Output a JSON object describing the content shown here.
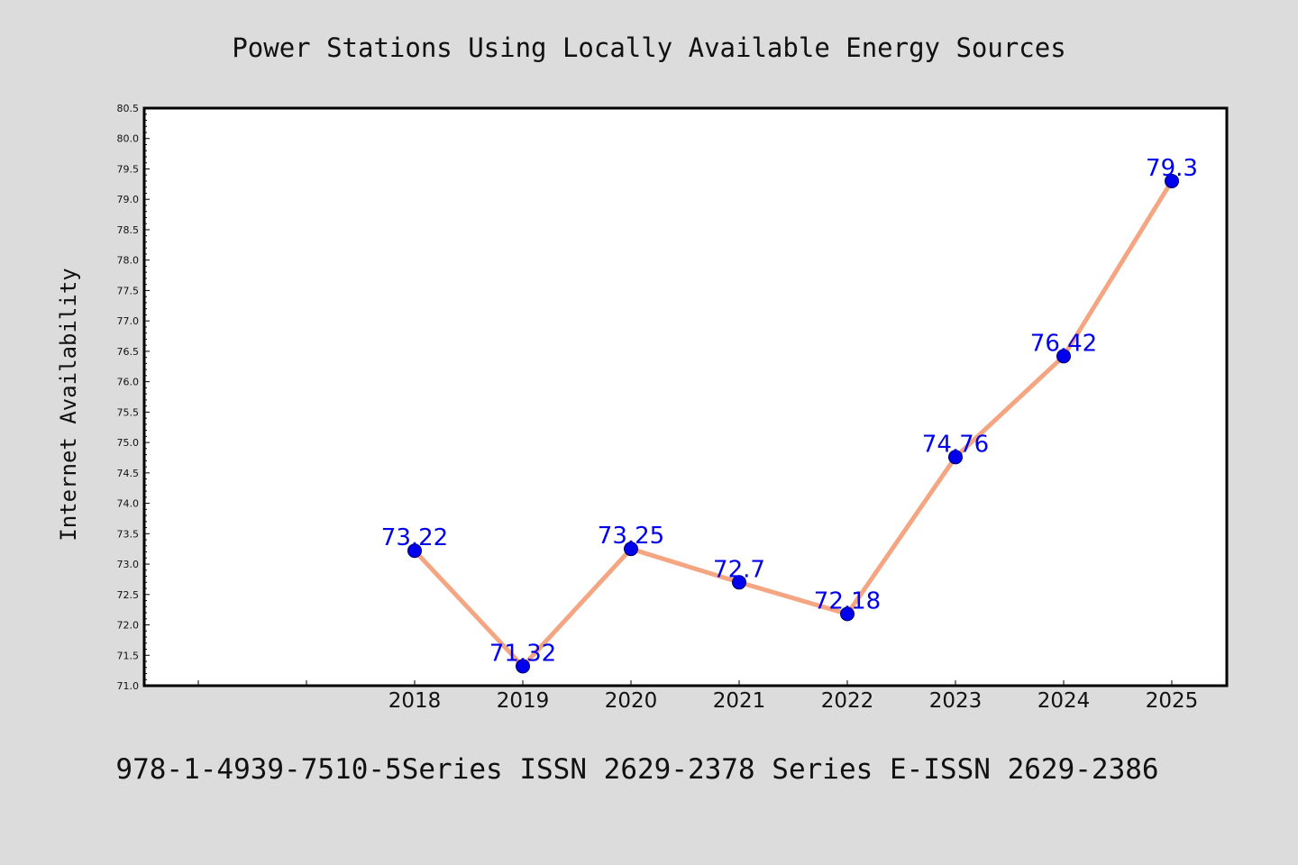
{
  "chart_data": {
    "type": "line",
    "title": "Power Stations Using Locally Available Energy Sources",
    "xlabel": "",
    "ylabel": "Internet Availability",
    "categories": [
      "2018",
      "2019",
      "2020",
      "2021",
      "2022",
      "2023",
      "2024",
      "2025"
    ],
    "series": [
      {
        "values": [
          73.22,
          71.32,
          73.25,
          72.7,
          72.18,
          74.76,
          76.42,
          79.3
        ],
        "labels": [
          "73.22",
          "71.32",
          "73.25",
          "72.7",
          "72.18",
          "74.76",
          "76.42",
          "79.3"
        ]
      }
    ],
    "ylim": [
      71.0,
      80.5
    ],
    "yticks": [
      "71.0",
      "71.5",
      "72.0",
      "72.5",
      "73.0",
      "73.5",
      "74.0",
      "74.5",
      "75.0",
      "75.5",
      "76.0",
      "76.5",
      "77.0",
      "77.5",
      "78.0",
      "78.5",
      "79.0",
      "79.5",
      "80.0",
      "80.5"
    ],
    "grid": false,
    "legend": "none",
    "colors": {
      "line": "#f4a582",
      "marker": "#0000ee",
      "label": "#0000ee",
      "plot_bg": "#ffffff",
      "page_bg": "#dcdcdc"
    }
  },
  "footer": "978-1-4939-7510-5Series ISSN 2629-2378 Series E-ISSN 2629-2386"
}
